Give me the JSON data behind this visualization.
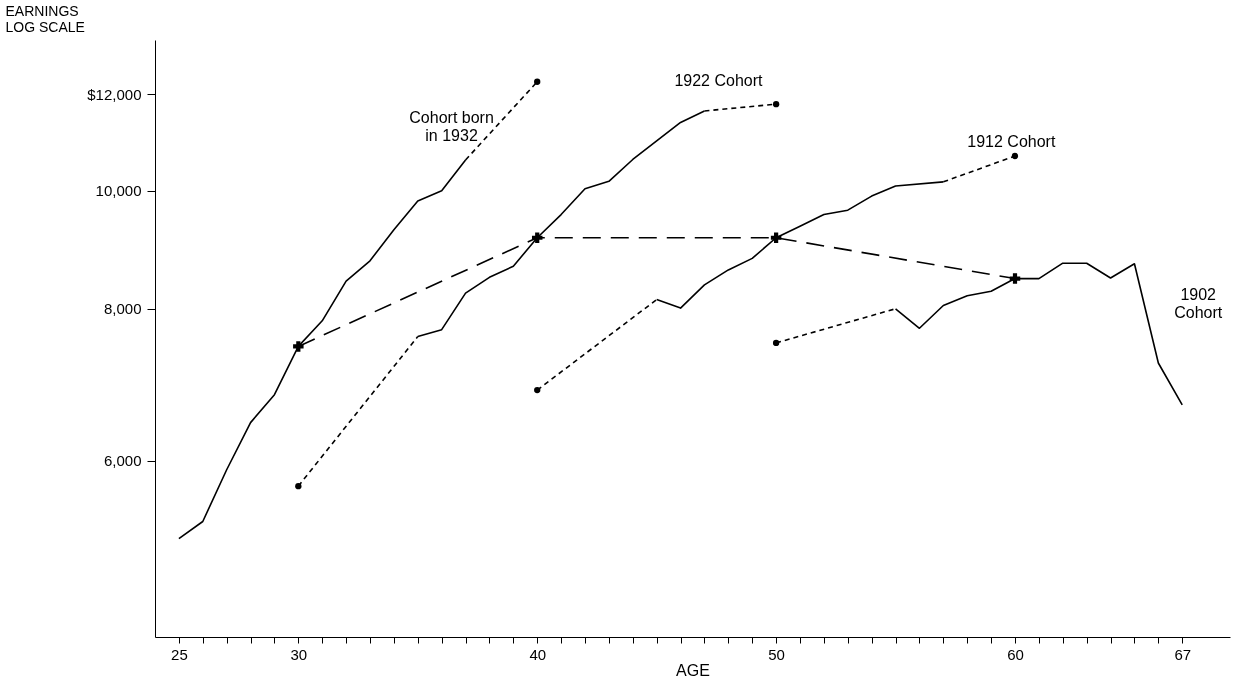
{
  "chart_data": {
    "type": "line",
    "xlabel": "AGE",
    "ylabel": "EARNINGS\nLOG SCALE",
    "log": "y",
    "grid": false,
    "xlim": [
      24,
      69
    ],
    "ylim": [
      4300,
      13300
    ],
    "xticks": [
      25,
      {
        "value": 26,
        "label": null
      },
      {
        "value": 27,
        "label": null
      },
      {
        "value": 28,
        "label": null
      },
      {
        "value": 29,
        "label": null
      },
      30,
      {
        "value": 31,
        "label": null
      },
      {
        "value": 32,
        "label": null
      },
      {
        "value": 33,
        "label": null
      },
      {
        "value": 34,
        "label": null
      },
      {
        "value": 35,
        "label": null
      },
      {
        "value": 36,
        "label": null
      },
      {
        "value": 37,
        "label": null
      },
      {
        "value": 38,
        "label": null
      },
      {
        "value": 39,
        "label": null
      },
      40,
      {
        "value": 41,
        "label": null
      },
      {
        "value": 42,
        "label": null
      },
      {
        "value": 43,
        "label": null
      },
      {
        "value": 44,
        "label": null
      },
      {
        "value": 45,
        "label": null
      },
      {
        "value": 46,
        "label": null
      },
      {
        "value": 47,
        "label": null
      },
      {
        "value": 48,
        "label": null
      },
      {
        "value": 49,
        "label": null
      },
      50,
      {
        "value": 51,
        "label": null
      },
      {
        "value": 52,
        "label": null
      },
      {
        "value": 53,
        "label": null
      },
      {
        "value": 54,
        "label": null
      },
      {
        "value": 55,
        "label": null
      },
      {
        "value": 56,
        "label": null
      },
      {
        "value": 57,
        "label": null
      },
      {
        "value": 58,
        "label": null
      },
      {
        "value": 59,
        "label": null
      },
      60,
      {
        "value": 61,
        "label": null
      },
      {
        "value": 62,
        "label": null
      },
      {
        "value": 63,
        "label": null
      },
      {
        "value": 64,
        "label": null
      },
      {
        "value": 65,
        "label": null
      },
      {
        "value": 66,
        "label": null
      },
      67
    ],
    "yticks": [
      {
        "value": 6000,
        "label": "6,000"
      },
      {
        "value": 8000,
        "label": "8,000"
      },
      {
        "value": 10000,
        "label": "10,000"
      },
      {
        "value": 12000,
        "label": "$12,000"
      }
    ],
    "series": [
      {
        "name": "Cohort born\nin 1932",
        "line_style": "solid",
        "color": "#000000",
        "x": [
          25,
          26,
          27,
          28,
          29,
          30,
          31,
          32,
          33,
          34,
          35,
          36,
          37
        ],
        "values": [
          5180,
          5350,
          5900,
          6450,
          6800,
          7450,
          7820,
          8430,
          8760,
          9290,
          9810,
          10000,
          10600
        ]
      },
      {
        "line_style": "dotted",
        "color": "#000000",
        "x": [
          37,
          40
        ],
        "values": [
          10600,
          12290
        ]
      },
      {
        "line_style": "dotted",
        "color": "#000000",
        "x": [
          30,
          35
        ],
        "values": [
          5720,
          7590
        ]
      },
      {
        "name": "1922 Cohort",
        "line_style": "solid",
        "color": "#000000",
        "x": [
          35,
          36,
          37,
          38,
          39,
          40,
          41,
          42,
          43,
          44,
          45,
          46,
          47
        ],
        "values": [
          7590,
          7690,
          8240,
          8490,
          8670,
          9150,
          9560,
          10040,
          10180,
          10610,
          10990,
          11380,
          11630
        ]
      },
      {
        "line_style": "dotted",
        "color": "#000000",
        "x": [
          47,
          50
        ],
        "values": [
          11630,
          11780
        ]
      },
      {
        "line_style": "dotted",
        "color": "#000000",
        "x": [
          40,
          45
        ],
        "values": [
          6860,
          8140
        ]
      },
      {
        "name": "1912 Cohort",
        "line_style": "solid",
        "color": "#000000",
        "x": [
          45,
          46,
          47,
          48,
          49,
          50,
          51,
          52,
          53,
          54,
          55,
          57
        ],
        "values": [
          8140,
          8010,
          8370,
          8610,
          8800,
          9150,
          9350,
          9560,
          9640,
          9900,
          10090,
          10170
        ]
      },
      {
        "line_style": "dotted",
        "color": "#000000",
        "x": [
          57,
          60
        ],
        "values": [
          10170,
          10680
        ]
      },
      {
        "line_style": "dotted",
        "color": "#000000",
        "x": [
          50,
          55
        ],
        "values": [
          7500,
          8000
        ]
      },
      {
        "name": "1902\nCohort",
        "line_style": "solid",
        "color": "#000000",
        "x": [
          55,
          56,
          57,
          58,
          59,
          60,
          61,
          62,
          63,
          64,
          65,
          66,
          67
        ],
        "values": [
          8000,
          7710,
          8050,
          8200,
          8270,
          8470,
          8470,
          8720,
          8720,
          8480,
          8710,
          7220,
          6670
        ]
      },
      {
        "line_style": "dashed",
        "color": "#000000",
        "x": [
          30,
          40,
          50,
          60
        ],
        "values": [
          7450,
          9150,
          9150,
          8470
        ]
      },
      {
        "type": "scatter",
        "marker": "cross",
        "color": "#000000",
        "x": [
          30,
          40,
          50,
          60
        ],
        "values": [
          7450,
          9150,
          9150,
          8470
        ]
      },
      {
        "type": "scatter",
        "marker": "circle",
        "color": "#000000",
        "x": [
          30,
          40,
          40,
          50,
          50,
          60
        ],
        "values": [
          5720,
          6860,
          12290,
          7500,
          11780,
          10680
        ]
      }
    ]
  }
}
